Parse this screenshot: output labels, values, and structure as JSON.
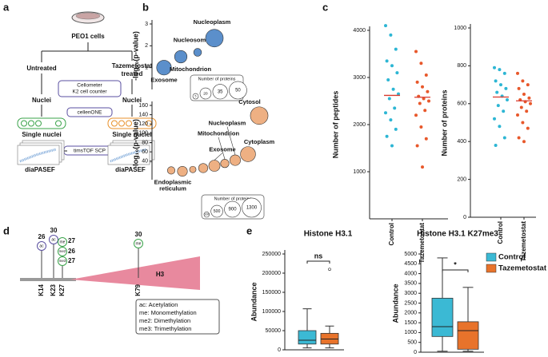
{
  "panel_labels": [
    "a",
    "b",
    "c",
    "d",
    "e"
  ],
  "panel_a": {
    "source": "PEO1 cells",
    "counter": [
      "Cellometer",
      "K2 cell counter"
    ],
    "sorter": "cellenONE",
    "instrument": "timsTOF SCP",
    "arms": [
      {
        "treatment": [
          "Untreated"
        ],
        "nuclei": "Nuclei",
        "single": "Single nuclei",
        "method": "diaPASEF"
      },
      {
        "treatment": [
          "Tazemetostat",
          "treated"
        ],
        "nuclei": "Nuclei",
        "single": "Single nuclei",
        "method": "diaPASEF"
      }
    ]
  },
  "panel_d": {
    "protein": "H3",
    "sites": [
      {
        "residue": "K14",
        "marks": [
          {
            "mod": "ac",
            "count": "26"
          }
        ]
      },
      {
        "residue": "K23",
        "marks": [
          {
            "mod": "ac",
            "count": "30"
          }
        ]
      },
      {
        "residue": "K27",
        "marks": [
          {
            "mod": "me",
            "count": "27"
          },
          {
            "mod": "me2",
            "count": "26"
          },
          {
            "mod": "me3",
            "count": "27"
          }
        ]
      },
      {
        "residue": "K79",
        "marks": [
          {
            "mod": "me",
            "count": "30"
          }
        ]
      }
    ],
    "legend": [
      "ac: Acetylation",
      "me: Monomethylation",
      "me2: Dimethylation",
      "me3: Trimethylation"
    ]
  },
  "chart_data": [
    {
      "type": "bubble",
      "ylabel": "-log₁₀(p-value)",
      "categories": [
        "Exosome",
        "Mitochondrion",
        "Nucleosome",
        "Nucleoplasm"
      ],
      "values": [
        1.0,
        1.5,
        1.7,
        2.35
      ],
      "sizes": [
        35,
        25,
        10,
        50
      ],
      "color": "#5b8fcb",
      "ylim": [
        0,
        3
      ],
      "yticks": [
        1,
        2,
        3
      ],
      "size_legend": {
        "title": "Number of proteins",
        "values": [
          5,
          20,
          35,
          50
        ]
      }
    },
    {
      "type": "bubble",
      "ylabel": "-log₁₀(p-value)",
      "categories": [
        null,
        [
          "Endoplasmic",
          "reticulum"
        ],
        null,
        null,
        "Exosome",
        "Mitochondrion",
        "Nucleoplasm",
        "Cytoplasm",
        "Cytosol"
      ],
      "values": [
        20,
        18,
        22,
        25,
        30,
        35,
        42,
        55,
        138
      ],
      "sizes": [
        200,
        350,
        150,
        300,
        450,
        250,
        400,
        800,
        1100
      ],
      "color": "#eeb083",
      "ylim": [
        0,
        160
      ],
      "yticks": [
        40,
        60,
        80,
        100,
        120,
        140,
        160
      ],
      "size_legend": {
        "title": "Number of proteins",
        "values": [
          100,
          500,
          900,
          1300
        ]
      }
    },
    {
      "type": "strip",
      "ylabel": "Number of peptides",
      "categories": [
        "Control",
        "Tazemetostat"
      ],
      "values": [
        [
          4100,
          3900,
          3600,
          3350,
          3250,
          3100,
          2950,
          2750,
          2650,
          2550,
          2350,
          2250,
          2100,
          1900,
          1750,
          1550
        ],
        [
          3550,
          3300,
          3050,
          2900,
          2800,
          2700,
          2600,
          2550,
          2500,
          2450,
          2300,
          2200,
          1950,
          1700,
          1550,
          1100
        ]
      ],
      "medians": [
        2620,
        2580
      ],
      "colors": [
        "#2db6d4",
        "#e8582b"
      ],
      "median_color": "#d9382c",
      "ylim": [
        0,
        4000
      ],
      "yticks": [
        1000,
        2000,
        3000,
        4000
      ]
    },
    {
      "type": "strip",
      "ylabel": "Number of proteins",
      "categories": [
        "Control",
        "Tazemetostat"
      ],
      "values": [
        [
          790,
          780,
          760,
          720,
          700,
          680,
          660,
          640,
          620,
          590,
          560,
          520,
          480,
          420,
          380
        ],
        [
          760,
          720,
          700,
          680,
          650,
          630,
          620,
          610,
          600,
          580,
          560,
          540,
          500,
          470,
          420,
          400
        ]
      ],
      "medians": [
        635,
        615
      ],
      "colors": [
        "#2db6d4",
        "#e8582b"
      ],
      "median_color": "#d9382c",
      "ylim": [
        0,
        1000
      ],
      "yticks": [
        0,
        200,
        400,
        600,
        800,
        1000
      ]
    },
    {
      "type": "box",
      "title": "Histone H3.1",
      "ylabel": "Abundance",
      "annotation": "ns",
      "series": [
        {
          "color": "#3bb9d4",
          "stats": {
            "whislo": 5000,
            "q1": 15000,
            "med": 25000,
            "q3": 50000,
            "whishi": 107000
          },
          "fliers": []
        },
        {
          "color": "#e8732b",
          "stats": {
            "whislo": 5000,
            "q1": 15000,
            "med": 28000,
            "q3": 43000,
            "whishi": 62000
          },
          "fliers": [
            210000
          ]
        }
      ],
      "ylim": [
        0,
        250000
      ],
      "yticks": [
        0,
        50000,
        100000,
        150000,
        200000,
        250000
      ]
    },
    {
      "type": "box",
      "title": "Histone H3.1 K27me3",
      "ylabel": "Abundance",
      "annotation": "*",
      "legend": "upper right",
      "series": [
        {
          "name": "Control",
          "color": "#3bb9d4",
          "stats": {
            "whislo": 50,
            "q1": 800,
            "med": 1300,
            "q3": 2750,
            "whishi": 4800
          },
          "fliers": []
        },
        {
          "name": "Tazemetostat",
          "color": "#e8732b",
          "stats": {
            "whislo": 50,
            "q1": 150,
            "med": 1100,
            "q3": 1550,
            "whishi": 3300
          },
          "fliers": []
        }
      ],
      "ylim": [
        0,
        5000
      ],
      "yticks": [
        0,
        500,
        1000,
        1500,
        2000,
        2500,
        3000,
        3500,
        4000,
        4500,
        5000
      ]
    }
  ]
}
